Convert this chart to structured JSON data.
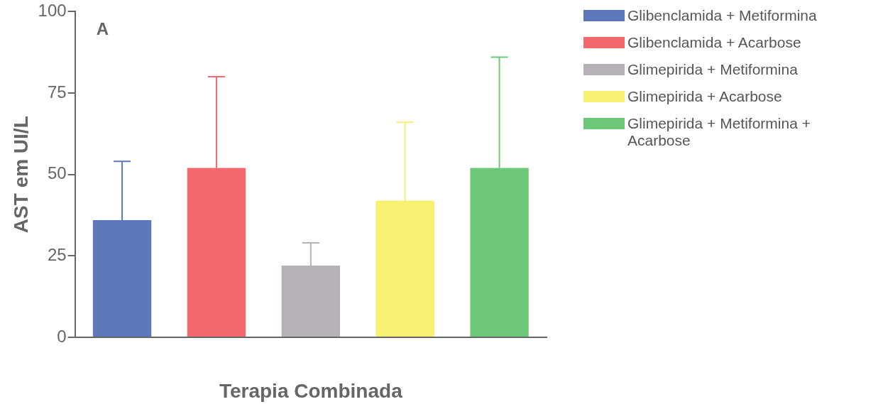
{
  "chart_data": {
    "type": "bar",
    "xlabel": "Terapia Combinada",
    "ylabel": "AST em UI/L",
    "annotations": [
      "A"
    ],
    "categories": [
      null,
      null,
      null,
      null,
      null
    ],
    "series": [
      {
        "name": "Glibenclamida + Metiformina",
        "color": "#5b78b8",
        "values": [
          36,
          null,
          null,
          null,
          null
        ],
        "errors": [
          [
            36,
            54
          ],
          null,
          null,
          null,
          null
        ]
      },
      {
        "name": "Glibenclamida + Acarbose",
        "color": "#f26a6e",
        "values": [
          null,
          52,
          null,
          null,
          null
        ],
        "errors": [
          null,
          [
            52,
            80
          ],
          null,
          null,
          null
        ]
      },
      {
        "name": "Glimepirida + Metiformina",
        "color": "#b8b0b8",
        "values": [
          null,
          null,
          22,
          null,
          null
        ],
        "errors": [
          null,
          null,
          [
            22,
            29
          ],
          null,
          null
        ]
      },
      {
        "name": "Glimepirida + Acarbose",
        "color": "#f8f070",
        "values": [
          null,
          null,
          null,
          42,
          null
        ],
        "errors": [
          null,
          null,
          null,
          [
            42,
            66
          ],
          null
        ]
      },
      {
        "name": "Glimepirida + Metiformina + Acarbose",
        "color": "#6cc878",
        "values": [
          null,
          null,
          null,
          null,
          52
        ],
        "errors": [
          null,
          null,
          null,
          null,
          [
            52,
            86
          ]
        ]
      }
    ],
    "ylim": [
      0,
      100
    ],
    "yticks": [
      0,
      25,
      50,
      75,
      100
    ],
    "grid": false,
    "legend": "right"
  }
}
